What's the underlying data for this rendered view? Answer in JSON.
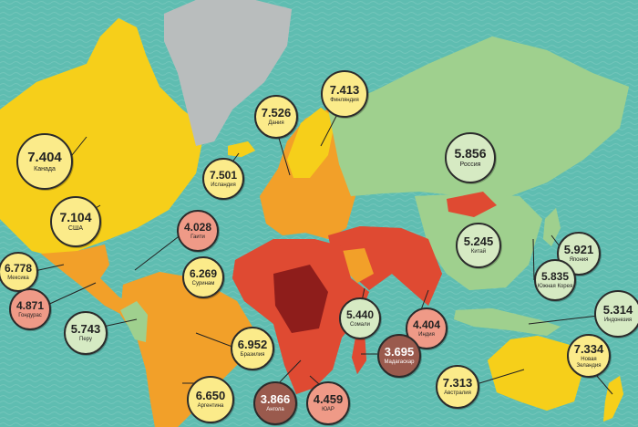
{
  "colors": {
    "ocean": "#5fbdb1",
    "happiest": "#f6cf1a",
    "happy": "#9fd08e",
    "middle": "#f2a029",
    "unhappy": "#df4a32",
    "unhappiest": "#8e1d1b",
    "greenland": "#b9bdbd"
  },
  "labels": [
    {
      "id": "canada",
      "value": "7.404",
      "name": "Канада",
      "tone": "yellow"
    },
    {
      "id": "usa",
      "value": "7.104",
      "name": "США",
      "tone": "yellow"
    },
    {
      "id": "mexico",
      "value": "6.778",
      "name": "Мексика",
      "tone": "yellow"
    },
    {
      "id": "honduras",
      "value": "4.871",
      "name": "Гондурас",
      "tone": "pink"
    },
    {
      "id": "peru",
      "value": "5.743",
      "name": "Перу",
      "tone": "green"
    },
    {
      "id": "haiti",
      "value": "4.028",
      "name": "Гаити",
      "tone": "pink"
    },
    {
      "id": "suriname",
      "value": "6.269",
      "name": "Суринам",
      "tone": "yellow"
    },
    {
      "id": "brazil",
      "value": "6.952",
      "name": "Бразилия",
      "tone": "yellow"
    },
    {
      "id": "argentina",
      "value": "6.650",
      "name": "Аргентина",
      "tone": "yellow"
    },
    {
      "id": "iceland",
      "value": "7.501",
      "name": "Исландия",
      "tone": "yellow"
    },
    {
      "id": "denmark",
      "value": "7.526",
      "name": "Дания",
      "tone": "yellow"
    },
    {
      "id": "finland",
      "value": "7.413",
      "name": "Финляндия",
      "tone": "yellow"
    },
    {
      "id": "russia",
      "value": "5.856",
      "name": "Россия",
      "tone": "green"
    },
    {
      "id": "china",
      "value": "5.245",
      "name": "Китай",
      "tone": "green"
    },
    {
      "id": "japan",
      "value": "5.921",
      "name": "Япония",
      "tone": "green"
    },
    {
      "id": "korea",
      "value": "5.835",
      "name": "Южная Корея",
      "tone": "green"
    },
    {
      "id": "indonesia",
      "value": "5.314",
      "name": "Индонезия",
      "tone": "green"
    },
    {
      "id": "somalia",
      "value": "5.440",
      "name": "Сомали",
      "tone": "green"
    },
    {
      "id": "india",
      "value": "4.404",
      "name": "Индия",
      "tone": "pink"
    },
    {
      "id": "madagascar",
      "value": "3.695",
      "name": "Мадагаскар",
      "tone": "brown"
    },
    {
      "id": "angola",
      "value": "3.866",
      "name": "Ангола",
      "tone": "brown"
    },
    {
      "id": "sar",
      "value": "4.459",
      "name": "ЮАР",
      "tone": "pink"
    },
    {
      "id": "australia",
      "value": "7.313",
      "name": "Австралия",
      "tone": "yellow"
    },
    {
      "id": "newzealand",
      "value": "7.334",
      "name": "Новая Зеландия",
      "tone": "yellow"
    }
  ]
}
